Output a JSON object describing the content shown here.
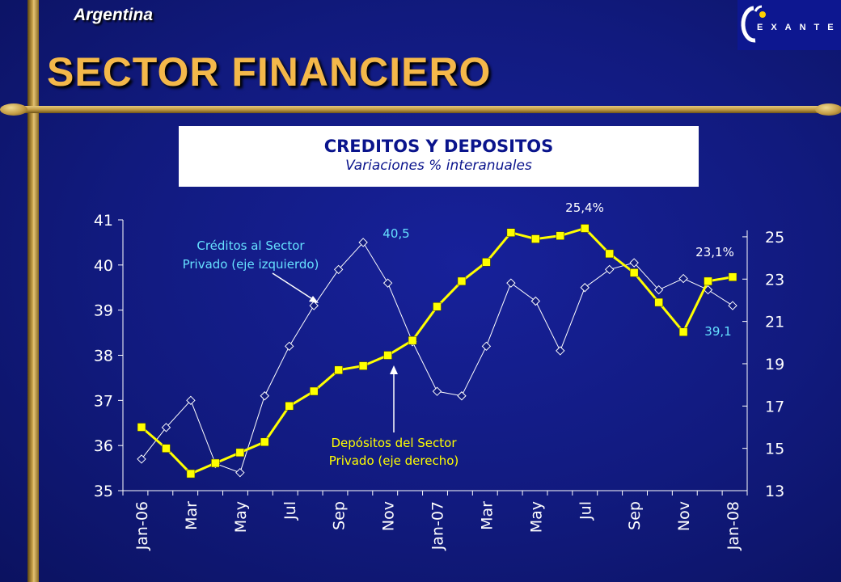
{
  "header": {
    "country": "Argentina",
    "title": "SECTOR FINANCIERO",
    "logo_text": "EXANTE",
    "logo_visible_letters": "EXANTE"
  },
  "colors": {
    "background": "#111a7e",
    "frame_gold": "#c9a24a",
    "title_orange": "#f4b84a",
    "depositos": "#ffff00",
    "creditos": "#ffffff",
    "annotation_cyan": "#66e0ff"
  },
  "chart_data": {
    "type": "line",
    "title": "CREDITOS Y DEPOSITOS",
    "subtitle": "Variaciones % interanuales",
    "x": [
      "Jan-06",
      "Feb-06",
      "Mar-06",
      "Apr-06",
      "May-06",
      "Jun-06",
      "Jul-06",
      "Aug-06",
      "Sep-06",
      "Oct-06",
      "Nov-06",
      "Dec-06",
      "Jan-07",
      "Feb-07",
      "Mar-07",
      "Apr-07",
      "May-07",
      "Jun-07",
      "Jul-07",
      "Aug-07",
      "Sep-07",
      "Oct-07",
      "Nov-07",
      "Dec-07",
      "Jan-08"
    ],
    "x_tick_labels": [
      "Jan-06",
      "Mar",
      "May",
      "Jul",
      "Sep",
      "Nov",
      "Jan-07",
      "Mar",
      "May",
      "Jul",
      "Sep",
      "Nov",
      "Jan-08"
    ],
    "x_tick_indices": [
      0,
      2,
      4,
      6,
      8,
      10,
      12,
      14,
      16,
      18,
      20,
      22,
      24
    ],
    "y_left": {
      "ticks": [
        "35",
        "36",
        "37",
        "38",
        "39",
        "40",
        "41"
      ],
      "range": [
        35,
        41
      ]
    },
    "y_right": {
      "ticks": [
        "13",
        "15",
        "17",
        "19",
        "21",
        "23",
        "25"
      ],
      "range": [
        13,
        25.8
      ]
    },
    "grid": false,
    "series": [
      {
        "name": "Créditos al Sector Privado (eje izquierdo)",
        "axis": "left",
        "marker": "diamond-hollow",
        "values": [
          35.7,
          36.4,
          37.0,
          35.6,
          35.4,
          37.1,
          38.2,
          39.1,
          39.9,
          40.5,
          39.6,
          38.3,
          37.2,
          37.1,
          38.2,
          39.6,
          39.2,
          38.1,
          39.5,
          39.9,
          40.05,
          39.45,
          39.7,
          39.45,
          39.1
        ]
      },
      {
        "name": "Depósitos del Sector Privado (eje derecho)",
        "axis": "right",
        "marker": "square-filled",
        "values": [
          16.0,
          15.0,
          13.8,
          14.3,
          14.8,
          15.3,
          17.0,
          17.7,
          18.7,
          18.9,
          19.4,
          20.1,
          21.7,
          22.9,
          23.8,
          25.2,
          24.9,
          25.05,
          25.4,
          24.2,
          23.3,
          21.9,
          20.5,
          22.9,
          23.1
        ]
      }
    ],
    "annotations": {
      "creditos_peak": "40,5",
      "depositos_peak": "25,4%",
      "depositos_last": "23,1%",
      "creditos_last": "39,1",
      "creditos_label_line1": "Créditos al Sector",
      "creditos_label_line2": "Privado (eje izquierdo)",
      "depositos_label_line1": "Depósitos del Sector",
      "depositos_label_line2": "Privado (eje derecho)"
    }
  }
}
